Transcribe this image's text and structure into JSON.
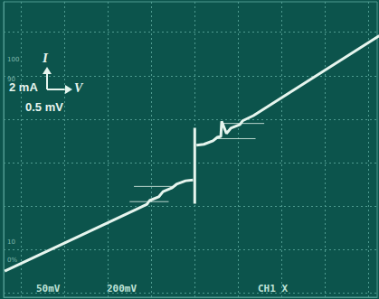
{
  "chart_data": {
    "type": "line",
    "color": "#e6f5ee",
    "grid": true,
    "tick_labels": false,
    "xlim": [
      -4.4,
      4.2
    ],
    "ylim": [
      -3.1,
      3.7
    ],
    "xticks": [
      -4,
      -3,
      -2,
      -1,
      0,
      1,
      2,
      3,
      4
    ],
    "yticks": [
      -3,
      -2,
      -1,
      0,
      1,
      2,
      3
    ],
    "annotations": [
      "I",
      "2 mA",
      "V",
      "0.5 mV",
      "50mV",
      "200mV",
      "CH1 X",
      "100",
      "90",
      "10",
      "0%"
    ],
    "series": [
      {
        "x": [
          -4.375,
          -1.35,
          -1.1,
          -1.04,
          -0.83,
          -0.73,
          -0.52,
          -0.42,
          -0.21,
          -0.04
        ],
        "values": [
          -2.5,
          -1.08,
          -0.96,
          -0.875,
          -0.79,
          -0.67,
          -0.58,
          -0.5,
          -0.42,
          -0.4
        ],
        "line_style": "solid"
      },
      {
        "x": [
          0,
          0
        ],
        "values": [
          -0.95,
          0.8
        ],
        "line_style": "solid"
      },
      {
        "x": [
          0.04,
          0.21,
          0.42,
          0.52,
          0.6,
          0.62,
          0.73,
          0.83,
          1.04,
          1.1,
          1.35,
          4.25
        ],
        "values": [
          0.4,
          0.42,
          0.5,
          0.58,
          0.6,
          0.95,
          0.67,
          0.79,
          0.875,
          0.96,
          1.08,
          2.92
        ],
        "line_style": "solid"
      },
      {
        "x": [
          -1.4,
          -0.45
        ],
        "values": [
          -0.55,
          -0.55
        ],
        "line_style": "thin"
      },
      {
        "x": [
          -1.5,
          -0.6
        ],
        "values": [
          -0.9,
          -0.9
        ],
        "line_style": "thin"
      },
      {
        "x": [
          0.45,
          1.4
        ],
        "values": [
          0.55,
          0.55
        ],
        "line_style": "thin"
      },
      {
        "x": [
          0.6,
          1.6
        ],
        "values": [
          0.9,
          0.9
        ],
        "line_style": "thin"
      }
    ]
  }
}
